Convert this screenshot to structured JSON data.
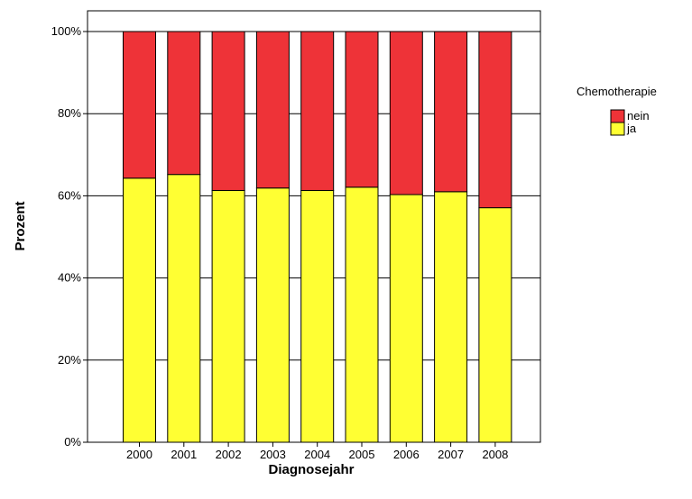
{
  "chart_data": {
    "type": "bar",
    "stacked": true,
    "orientation": "vertical",
    "categories": [
      "2000",
      "2001",
      "2002",
      "2003",
      "2004",
      "2005",
      "2006",
      "2007",
      "2008"
    ],
    "series": [
      {
        "name": "ja",
        "color": "#ffff33",
        "values": [
          64.3,
          65.2,
          61.3,
          61.9,
          61.3,
          62.1,
          60.3,
          61.0,
          57.1
        ]
      },
      {
        "name": "nein",
        "color": "#ee3338",
        "values": [
          35.7,
          34.8,
          38.7,
          38.1,
          38.7,
          37.9,
          39.7,
          39.0,
          42.9
        ]
      }
    ],
    "xlabel": "Diagnosejahr",
    "ylabel": "Prozent",
    "ylim": [
      0,
      100
    ],
    "yticks": [
      "0%",
      "20%",
      "40%",
      "60%",
      "80%",
      "100%"
    ],
    "ytick_values": [
      0,
      20,
      40,
      60,
      80,
      100
    ],
    "grid": true,
    "legend": {
      "title": "Chemotherapie",
      "placement": "right-top",
      "entries": [
        {
          "label": "nein",
          "color": "#ee3338"
        },
        {
          "label": "ja",
          "color": "#ffff33"
        }
      ]
    }
  }
}
